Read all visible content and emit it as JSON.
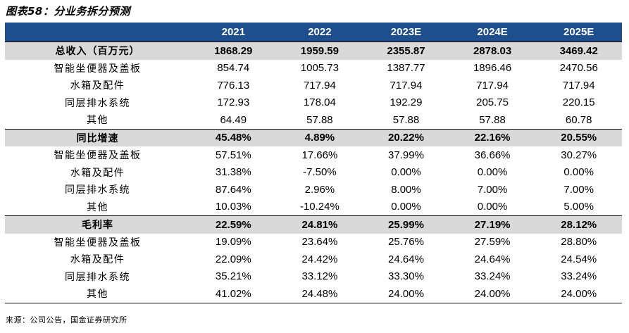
{
  "title": "图表58：分业务拆分预测",
  "table": {
    "headers": [
      "",
      "2021",
      "2022",
      "2023E",
      "2024E",
      "2025E"
    ],
    "sections": [
      {
        "label": "总收入（百万元）",
        "values": [
          "1868.29",
          "1959.59",
          "2355.87",
          "2878.03",
          "3469.42"
        ],
        "rows": [
          {
            "label": "智能坐便器及盖板",
            "values": [
              "854.74",
              "1005.73",
              "1387.77",
              "1896.46",
              "2470.56"
            ]
          },
          {
            "label": "水箱及配件",
            "values": [
              "776.13",
              "717.94",
              "717.94",
              "717.94",
              "717.94"
            ]
          },
          {
            "label": "同层排水系统",
            "values": [
              "172.93",
              "178.04",
              "192.29",
              "205.75",
              "220.15"
            ]
          },
          {
            "label": "其他",
            "values": [
              "64.49",
              "57.88",
              "57.88",
              "57.88",
              "60.78"
            ]
          }
        ]
      },
      {
        "label": "同比增速",
        "values": [
          "45.48%",
          "4.89%",
          "20.22%",
          "22.16%",
          "20.55%"
        ],
        "rows": [
          {
            "label": "智能坐便器及盖板",
            "values": [
              "57.51%",
              "17.66%",
              "37.99%",
              "36.66%",
              "30.27%"
            ]
          },
          {
            "label": "水箱及配件",
            "values": [
              "31.38%",
              "-7.50%",
              "0.00%",
              "0.00%",
              "0.00%"
            ]
          },
          {
            "label": "同层排水系统",
            "values": [
              "87.64%",
              "2.96%",
              "8.00%",
              "7.00%",
              "7.00%"
            ]
          },
          {
            "label": "其他",
            "values": [
              "10.03%",
              "-10.24%",
              "0.00%",
              "0.00%",
              "5.00%"
            ]
          }
        ]
      },
      {
        "label": "毛利率",
        "values": [
          "22.59%",
          "24.81%",
          "25.99%",
          "27.19%",
          "28.12%"
        ],
        "rows": [
          {
            "label": "智能坐便器及盖板",
            "values": [
              "19.09%",
              "23.64%",
              "25.76%",
              "27.59%",
              "28.80%"
            ]
          },
          {
            "label": "水箱及配件",
            "values": [
              "22.09%",
              "24.42%",
              "24.64%",
              "24.64%",
              "24.54%"
            ]
          },
          {
            "label": "同层排水系统",
            "values": [
              "35.21%",
              "33.12%",
              "33.30%",
              "33.24%",
              "33.24%"
            ]
          },
          {
            "label": "其他",
            "values": [
              "41.02%",
              "24.48%",
              "24.00%",
              "24.00%",
              "24.00%"
            ]
          }
        ]
      }
    ]
  },
  "source": "来源：公司公告，国金证券研究所",
  "colors": {
    "header_bg": "#1f4e8c",
    "section_bg": "#d9d9d9"
  }
}
